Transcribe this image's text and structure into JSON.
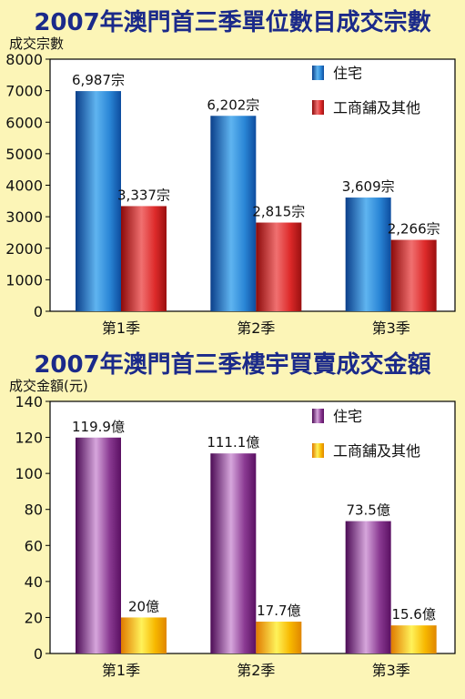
{
  "chart_data": [
    {
      "type": "bar",
      "title": "2007年澳門首三季單位數目成交宗數",
      "ylabel": "成交宗數",
      "xlabel": "",
      "categories": [
        "第1季",
        "第2季",
        "第3季"
      ],
      "ylim": [
        0,
        8000
      ],
      "yticks": [
        0,
        1000,
        2000,
        3000,
        4000,
        5000,
        6000,
        7000,
        8000
      ],
      "series": [
        {
          "name": "住宅",
          "values": [
            6987,
            6202,
            3609
          ],
          "labels": [
            "6,987宗",
            "6,202宗",
            "3,609宗"
          ],
          "color": "#1a73c8"
        },
        {
          "name": "工商舖及其他",
          "values": [
            3337,
            2815,
            2266
          ],
          "labels": [
            "3,337宗",
            "2,815宗",
            "2,266宗"
          ],
          "color": "#d42020"
        }
      ],
      "legend": "top-right",
      "grid": false
    },
    {
      "type": "bar",
      "title": "2007年澳門首三季樓宇買賣成交金額",
      "ylabel": "成交金額(元)",
      "xlabel": "",
      "categories": [
        "第1季",
        "第2季",
        "第3季"
      ],
      "ylim": [
        0,
        140
      ],
      "yticks": [
        0,
        20,
        40,
        60,
        80,
        100,
        120,
        140
      ],
      "series": [
        {
          "name": "住宅",
          "values": [
            119.9,
            111.1,
            73.5
          ],
          "labels": [
            "119.9億",
            "111.1億",
            "73.5億"
          ],
          "color": "#7a1b7e"
        },
        {
          "name": "工商舖及其他",
          "values": [
            20,
            17.7,
            15.6
          ],
          "labels": [
            "20億",
            "17.7億",
            "15.6億"
          ],
          "color": "#f2a900"
        }
      ],
      "legend": "top-right",
      "grid": false
    }
  ]
}
